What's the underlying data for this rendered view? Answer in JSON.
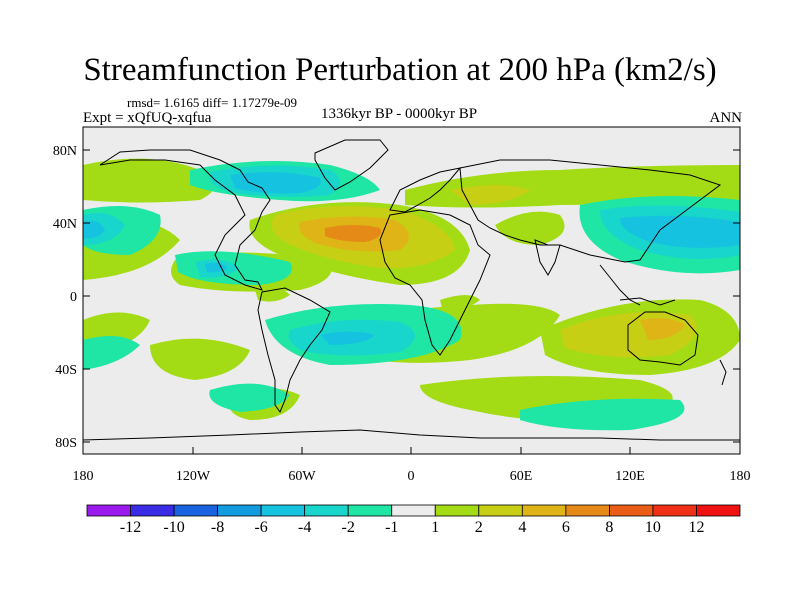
{
  "header": {
    "title": "Streamfunction Perturbation at 200 hPa (km2/s)",
    "stats": "rmsd= 1.6165 diff= 1.17279e-09",
    "experiment": "Expt = xQfUQ-xqfua",
    "period": "1336kyr BP - 0000kyr BP",
    "season": "ANN"
  },
  "map": {
    "lon_ticks": [
      "180",
      "120W",
      "60W",
      "0",
      "60E",
      "120E",
      "180"
    ],
    "lat_ticks": [
      "80N",
      "40N",
      "0",
      "40S",
      "80S"
    ]
  },
  "colorbar": {
    "labels": [
      "-12",
      "-10",
      "-8",
      "-6",
      "-4",
      "-2",
      "-1",
      "1",
      "2",
      "4",
      "6",
      "8",
      "10",
      "12"
    ],
    "colors": [
      "#9b1bef",
      "#3b2de6",
      "#1a63e0",
      "#139bdf",
      "#15c3e0",
      "#18d6cc",
      "#1fe6a5",
      "#ececec",
      "#a3dc14",
      "#c7cf14",
      "#dfb417",
      "#e58917",
      "#ea5d17",
      "#ef3016",
      "#f01111"
    ]
  }
}
